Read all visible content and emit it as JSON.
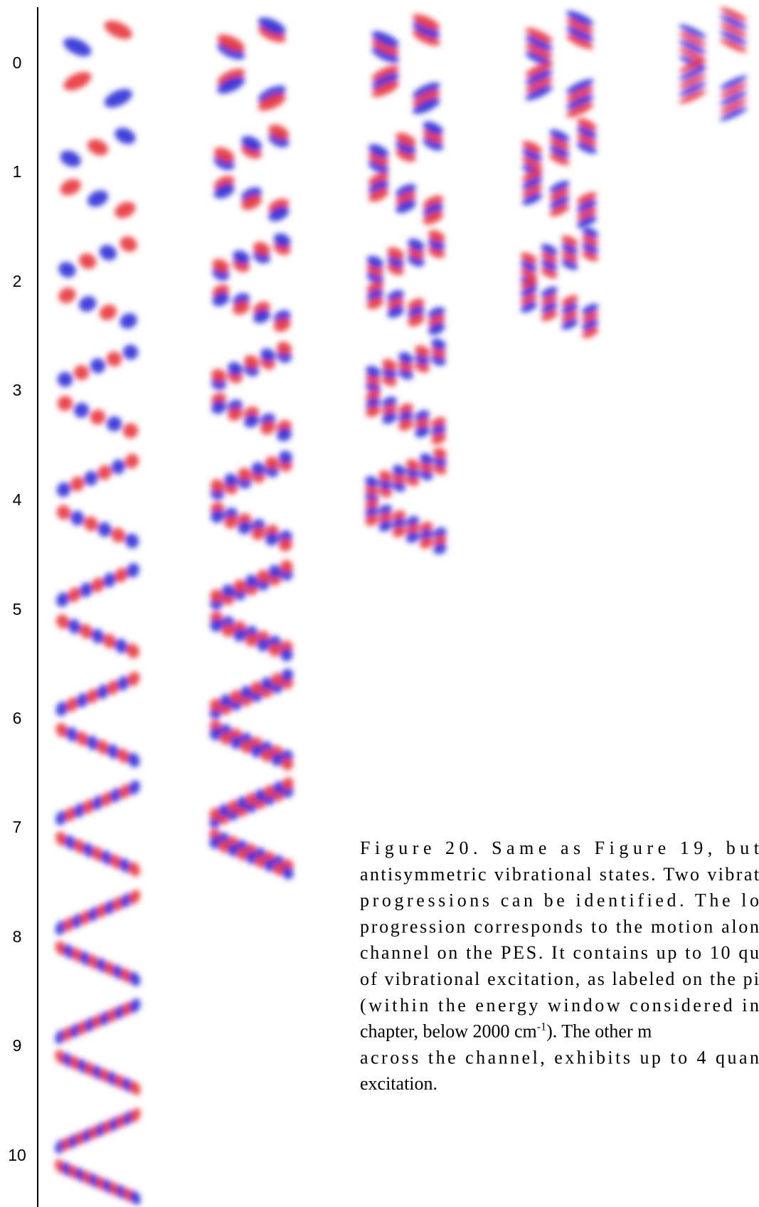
{
  "row_labels": [
    "0",
    "1",
    "2",
    "3",
    "4",
    "5",
    "6",
    "7",
    "8",
    "9",
    "10"
  ],
  "caption": {
    "lines": [
      "Figure 20. Same as Figure 19, but",
      "antisymmetric vibrational states. Two vibrat",
      "progressions can be identified. The lo",
      "progression corresponds to the motion alon",
      "channel on the PES. It contains up to 10 qu",
      "of vibrational excitation, as labeled on the pi",
      "(within the energy window considered in"
    ],
    "superscript_line": {
      "before": "chapter, below 2000 cm",
      "sup": "-1",
      "after": "). The other m"
    },
    "after_lines": [
      "across the channel, exhibits up to 4 quan",
      "excitation."
    ]
  }
}
